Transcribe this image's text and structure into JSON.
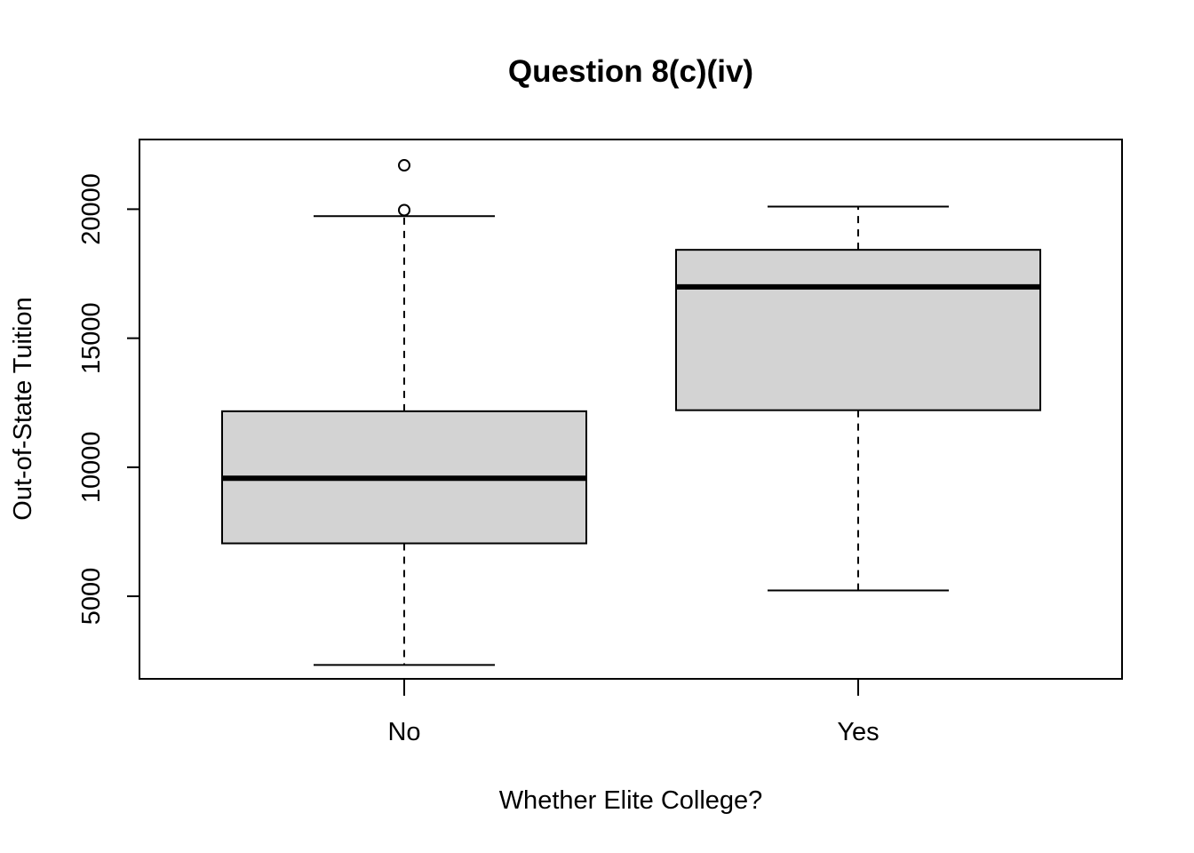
{
  "chart_data": {
    "type": "boxplot",
    "title": "Question 8(c)(iv)",
    "xlabel": "Whether Elite College?",
    "ylabel": "Out-of-State Tuition",
    "categories": [
      "No",
      "Yes"
    ],
    "ylim": [
      1800,
      22700
    ],
    "yticks": [
      5000,
      10000,
      15000,
      20000
    ],
    "ytick_labels": [
      "5000",
      "10000",
      "15000",
      "20000"
    ],
    "grid": false,
    "legend": "none",
    "box_fill": "#d3d3d3",
    "boxes": [
      {
        "category": "No",
        "whisker_low": 2340,
        "q1": 7050,
        "median": 9575,
        "q3": 12170,
        "whisker_high": 19730,
        "outliers": [
          21700,
          19964
        ]
      },
      {
        "category": "Yes",
        "whisker_low": 5224,
        "q1": 12210,
        "median": 16990,
        "q3": 18425,
        "whisker_high": 20100,
        "outliers": []
      }
    ]
  }
}
